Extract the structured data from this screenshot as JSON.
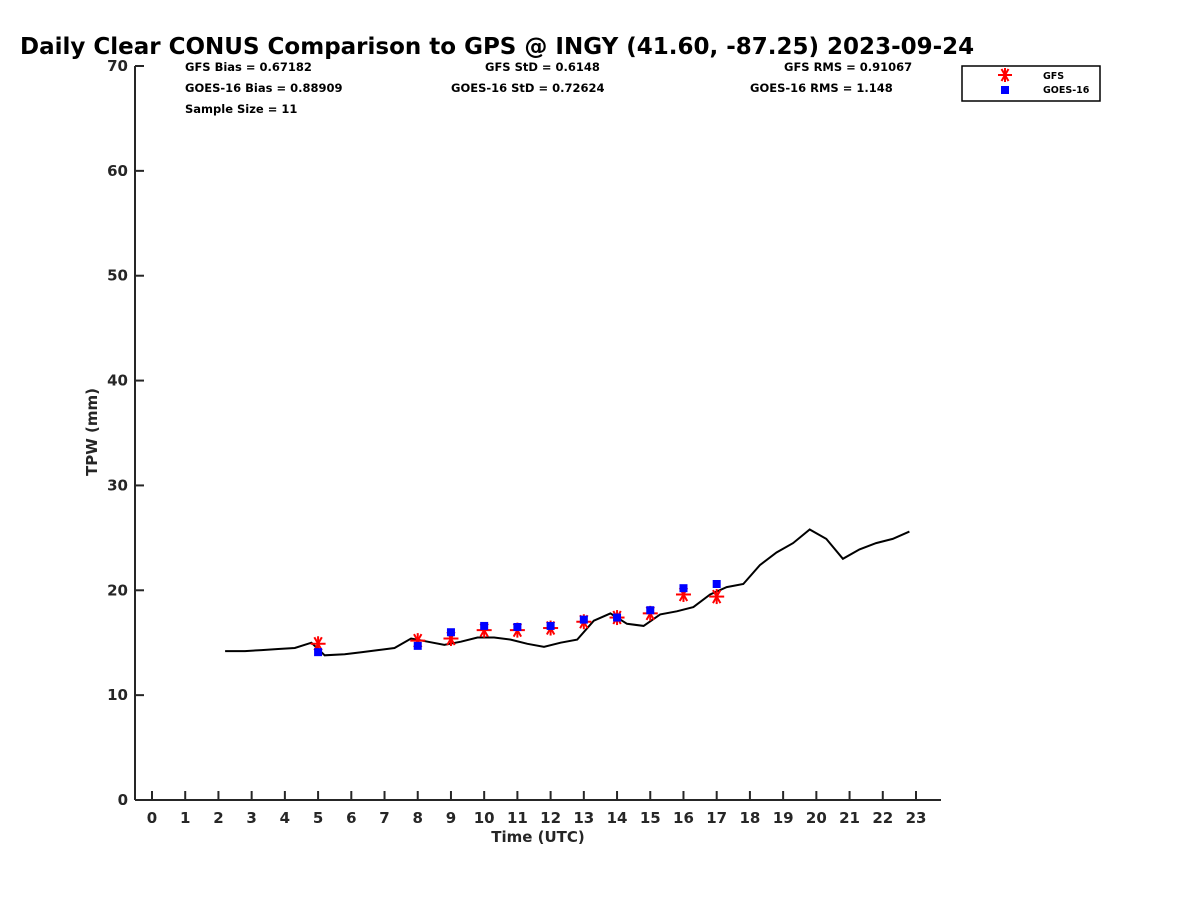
{
  "chart_data": {
    "type": "line",
    "title": "Daily Clear CONUS Comparison to GPS @ INGY (41.60, -87.25) 2023-09-24",
    "xlabel": "Time (UTC)",
    "ylabel": "TPW (mm)",
    "xlim": [
      -0.5,
      23.7
    ],
    "ylim": [
      0,
      70
    ],
    "xticks": [
      0,
      1,
      2,
      3,
      4,
      5,
      6,
      7,
      8,
      9,
      10,
      11,
      12,
      13,
      14,
      15,
      16,
      17,
      18,
      19,
      20,
      21,
      22,
      23
    ],
    "yticks": [
      0,
      10,
      20,
      30,
      40,
      50,
      60,
      70
    ],
    "grid": false,
    "legend_position": "top-right",
    "stats": {
      "gfs_bias": "GFS Bias = 0.67182",
      "goes_bias": "GOES-16 Bias = 0.88909",
      "sample_size": "Sample Size = 11",
      "gfs_std": "GFS StD = 0.6148",
      "goes_std": "GOES-16 StD = 0.72624",
      "gfs_rms": "GFS RMS = 0.91067",
      "goes_rms": "GOES-16 RMS = 1.148"
    },
    "series": [
      {
        "type": "line",
        "color": "#000000",
        "x": [
          2.2,
          2.8,
          3.3,
          3.8,
          4.3,
          4.8,
          5.2,
          5.8,
          6.3,
          6.8,
          7.3,
          7.8,
          8.3,
          8.8,
          9.3,
          9.8,
          10.3,
          10.8,
          11.3,
          11.8,
          12.3,
          12.8,
          13.3,
          13.8,
          14.3,
          14.8,
          15.3,
          15.8,
          16.3,
          16.8,
          17.3,
          17.8,
          18.3,
          18.8,
          19.3,
          19.8,
          20.3,
          20.8,
          21.3,
          21.8,
          22.3,
          22.8
        ],
        "y": [
          14.2,
          14.2,
          14.3,
          14.4,
          14.5,
          15.0,
          13.8,
          13.9,
          14.1,
          14.3,
          14.5,
          15.4,
          15.1,
          14.8,
          15.1,
          15.5,
          15.5,
          15.3,
          14.9,
          14.6,
          15.0,
          15.3,
          17.1,
          17.8,
          16.8,
          16.6,
          17.7,
          18.0,
          18.4,
          19.6,
          20.3,
          20.6,
          22.4,
          23.6,
          24.5,
          25.8,
          24.9,
          23.0,
          23.9,
          24.5,
          24.9,
          25.6
        ]
      },
      {
        "name": "GFS",
        "type": "scatter",
        "marker": "asterisk",
        "color": "#ff0000",
        "x": [
          5,
          8,
          9,
          10,
          11,
          12,
          13,
          14,
          15,
          16,
          17
        ],
        "y": [
          14.9,
          15.2,
          15.4,
          16.2,
          16.2,
          16.4,
          17.0,
          17.4,
          17.8,
          19.6,
          19.4
        ]
      },
      {
        "name": "GOES-16",
        "type": "scatter",
        "marker": "square",
        "color": "#0000ff",
        "x": [
          5,
          8,
          9,
          10,
          11,
          12,
          13,
          14,
          15,
          16,
          17
        ],
        "y": [
          14.1,
          14.7,
          16.0,
          16.6,
          16.5,
          16.6,
          17.2,
          17.4,
          18.1,
          20.2,
          20.6
        ]
      }
    ]
  }
}
